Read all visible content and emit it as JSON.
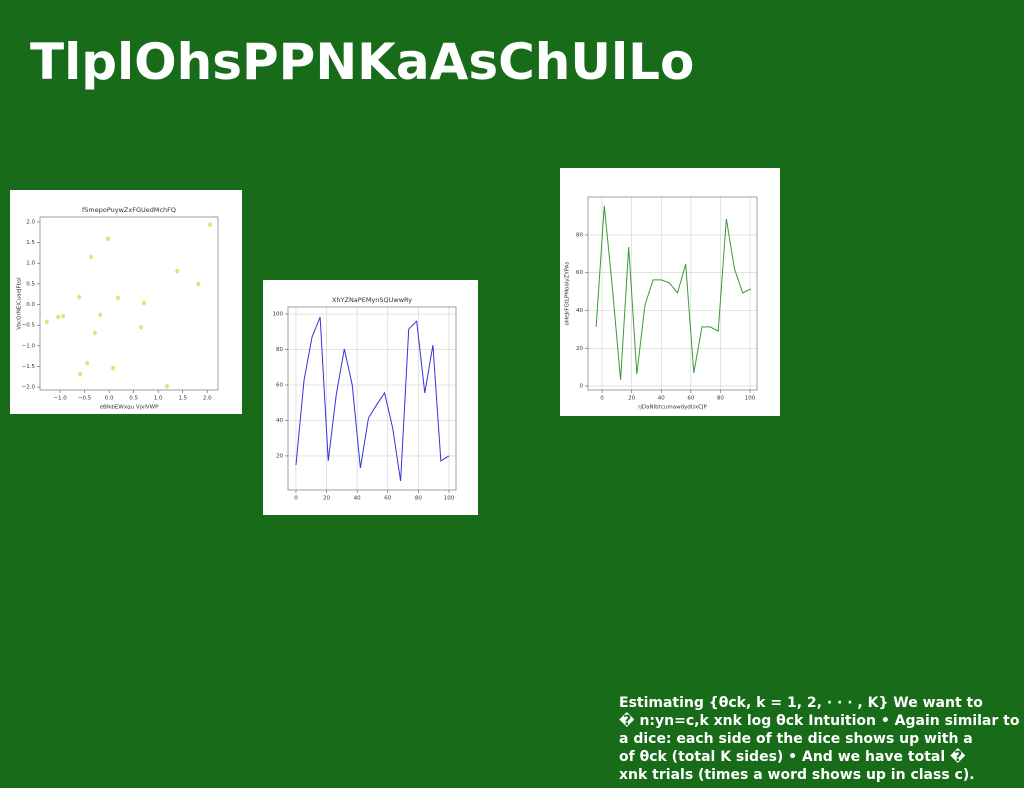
{
  "slide_title": "TlplOhsPPNKaAsChUlLo",
  "body_lines": [
    "Estimating {θck, k = 1, 2, · · · , K} We want to",
    "� n:yn=c,k xnk log θck Intuition • Again similar to",
    "a dice: each side of the dice shows up with a",
    "of θck (total K sides) • And we have total �",
    "xnk trials (times a word shows up in class c)."
  ],
  "chart_data": [
    {
      "type": "scatter",
      "title": "fSmepoPuywZxFGUedMchFQ",
      "xlabel": "eBlkbEWxqu VjxlVWP",
      "ylabel": "VacQrNElCuaeJFbsl",
      "color": "#dce775",
      "grid": false,
      "x": [
        -1.27,
        -1.04,
        -0.94,
        -0.61,
        -0.59,
        -0.45,
        -0.37,
        -0.29,
        -0.18,
        -0.02,
        0.08,
        0.18,
        0.65,
        0.71,
        1.18,
        1.39,
        1.82,
        2.06
      ],
      "values": [
        -0.42,
        -0.3,
        -0.28,
        0.18,
        -1.68,
        -1.42,
        1.15,
        -0.69,
        -0.25,
        1.59,
        -1.54,
        0.16,
        -0.55,
        0.04,
        -1.98,
        0.81,
        0.5,
        1.93
      ],
      "xlim": [
        -1.41,
        2.22
      ],
      "ylim": [
        -2.07,
        2.12
      ],
      "xticks": [
        {
          "value": -1,
          "label": "−1.0"
        },
        {
          "value": -0.5,
          "label": "−0.5"
        },
        {
          "value": 0,
          "label": "0.0"
        },
        0.5,
        {
          "value": 1,
          "label": "1.0"
        },
        1.5,
        {
          "value": 2,
          "label": "2.0"
        }
      ],
      "yticks": [
        {
          "value": -2,
          "label": "−2.0"
        },
        {
          "value": -1.5,
          "label": "−1.5"
        },
        {
          "value": -1,
          "label": "−1.0"
        },
        {
          "value": -0.5,
          "label": "−0.5"
        },
        {
          "value": 0,
          "label": "0.0"
        },
        0.5,
        {
          "value": 1,
          "label": "1.0"
        },
        1.5,
        {
          "value": 2,
          "label": "2.0"
        }
      ]
    },
    {
      "type": "line",
      "title": "XhYZNaPEMynSQUwwRy",
      "color": "#3333dd",
      "grid": true,
      "x": [
        0,
        5.3,
        10.5,
        15.8,
        21.1,
        26.3,
        31.6,
        36.8,
        42.1,
        47.4,
        52.6,
        57.9,
        63.2,
        68.4,
        73.7,
        78.9,
        84.2,
        89.5,
        94.7,
        100
      ],
      "values": [
        14.9,
        62.8,
        87,
        98.3,
        17.2,
        54.4,
        80.3,
        60,
        13.2,
        41.4,
        48.7,
        55.5,
        35.8,
        5.9,
        91.5,
        96,
        55.5,
        82.5,
        17.2,
        20
      ],
      "xlim": [
        -5.2,
        104.6
      ],
      "ylim": [
        0.8,
        104
      ],
      "xticks": [
        0,
        20,
        40,
        60,
        80,
        100
      ],
      "yticks": [
        20,
        40,
        60,
        80,
        100
      ]
    },
    {
      "type": "line",
      "xlabel": "rjDaNlbtcumawdydUxCJP",
      "ylabel": "oHeJrFGtLPMoalyZYPAs",
      "color": "#3a9a3a",
      "grid": true,
      "x": [
        -4,
        1.5,
        7,
        12.5,
        18,
        23.5,
        29,
        34.5,
        40,
        45.5,
        51,
        56.5,
        62,
        67.5,
        73,
        78.5,
        84,
        89.5,
        95,
        100.5
      ],
      "values": [
        31.3,
        95.4,
        51.9,
        3.2,
        73.6,
        6.4,
        42.9,
        56.2,
        56.2,
        54.6,
        49.3,
        64.6,
        6.9,
        31.3,
        31.3,
        29.1,
        88.5,
        62,
        49.3,
        51.4
      ],
      "xlim": [
        -9.5,
        104.7
      ],
      "ylim": [
        -2.1,
        100.1
      ],
      "xticks": [
        0,
        20,
        40,
        60,
        80,
        100
      ],
      "yticks": [
        0,
        20,
        40,
        60,
        80
      ]
    }
  ]
}
